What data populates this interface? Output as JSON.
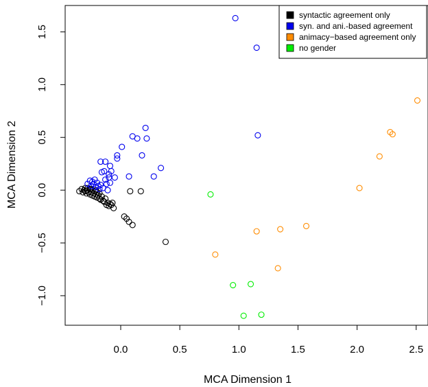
{
  "chart_data": {
    "type": "scatter",
    "xlabel": "MCA Dimension 1",
    "ylabel": "MCA Dimension 2",
    "xlim": [
      -0.47,
      2.6
    ],
    "ylim": [
      -1.28,
      1.75
    ],
    "x_ticks": [
      0.0,
      0.5,
      1.0,
      1.5,
      2.0,
      2.5
    ],
    "x_tick_labels": [
      "0.0",
      "0.5",
      "1.0",
      "1.5",
      "2.0",
      "2.5"
    ],
    "y_ticks": [
      -1.0,
      -0.5,
      0.0,
      0.5,
      1.0,
      1.5
    ],
    "y_tick_labels": [
      "−1.0",
      "−0.5",
      "0.0",
      "0.5",
      "1.0",
      "1.5"
    ],
    "grid": false,
    "legend_position": "top-right",
    "series": [
      {
        "name": "syntactic agreement only",
        "color": "#000000",
        "points": [
          [
            -0.35,
            -0.01
          ],
          [
            -0.33,
            0.01
          ],
          [
            -0.32,
            -0.02
          ],
          [
            -0.31,
            0.0
          ],
          [
            -0.3,
            -0.01
          ],
          [
            -0.3,
            0.02
          ],
          [
            -0.29,
            -0.03
          ],
          [
            -0.28,
            0.0
          ],
          [
            -0.27,
            -0.02
          ],
          [
            -0.26,
            0.01
          ],
          [
            -0.26,
            -0.04
          ],
          [
            -0.25,
            -0.02
          ],
          [
            -0.24,
            0.0
          ],
          [
            -0.24,
            -0.05
          ],
          [
            -0.23,
            -0.03
          ],
          [
            -0.22,
            -0.01
          ],
          [
            -0.22,
            -0.06
          ],
          [
            -0.21,
            -0.04
          ],
          [
            -0.2,
            -0.02
          ],
          [
            -0.2,
            -0.07
          ],
          [
            -0.19,
            -0.05
          ],
          [
            -0.18,
            -0.08
          ],
          [
            -0.18,
            -0.03
          ],
          [
            -0.17,
            -0.09
          ],
          [
            -0.16,
            -0.06
          ],
          [
            -0.15,
            -0.1
          ],
          [
            -0.14,
            -0.11
          ],
          [
            -0.13,
            -0.08
          ],
          [
            -0.12,
            -0.14
          ],
          [
            -0.11,
            -0.12
          ],
          [
            -0.1,
            -0.15
          ],
          [
            -0.09,
            -0.13
          ],
          [
            -0.08,
            -0.14
          ],
          [
            -0.07,
            -0.12
          ],
          [
            -0.06,
            -0.17
          ],
          [
            -0.28,
            0.02
          ],
          [
            -0.25,
            0.01
          ],
          [
            -0.21,
            0.0
          ],
          [
            0.08,
            -0.01
          ],
          [
            0.17,
            -0.01
          ],
          [
            0.03,
            -0.25
          ],
          [
            0.05,
            -0.27
          ],
          [
            0.07,
            -0.3
          ],
          [
            0.1,
            -0.33
          ],
          [
            0.38,
            -0.49
          ]
        ]
      },
      {
        "name": "syn. and ani.-based agreement",
        "color": "#0000ee",
        "points": [
          [
            -0.28,
            0.06
          ],
          [
            -0.26,
            0.09
          ],
          [
            -0.25,
            0.04
          ],
          [
            -0.24,
            0.08
          ],
          [
            -0.23,
            0.06
          ],
          [
            -0.22,
            0.1
          ],
          [
            -0.21,
            0.03
          ],
          [
            -0.2,
            0.07
          ],
          [
            -0.19,
            0.04
          ],
          [
            -0.18,
            0.01
          ],
          [
            -0.17,
            0.05
          ],
          [
            -0.16,
            0.17
          ],
          [
            -0.15,
            0.02
          ],
          [
            -0.14,
            0.18
          ],
          [
            -0.13,
            0.1
          ],
          [
            -0.12,
            0.06
          ],
          [
            -0.11,
            0.0
          ],
          [
            -0.1,
            0.15
          ],
          [
            -0.1,
            0.12
          ],
          [
            -0.09,
            0.07
          ],
          [
            -0.08,
            0.18
          ],
          [
            -0.17,
            0.27
          ],
          [
            -0.13,
            0.27
          ],
          [
            -0.09,
            0.23
          ],
          [
            -0.05,
            0.12
          ],
          [
            -0.03,
            0.3
          ],
          [
            -0.03,
            0.33
          ],
          [
            0.01,
            0.41
          ],
          [
            0.07,
            0.13
          ],
          [
            0.1,
            0.51
          ],
          [
            0.14,
            0.49
          ],
          [
            0.18,
            0.33
          ],
          [
            0.21,
            0.59
          ],
          [
            0.22,
            0.49
          ],
          [
            0.28,
            0.13
          ],
          [
            0.34,
            0.21
          ],
          [
            0.97,
            1.63
          ],
          [
            1.15,
            1.35
          ],
          [
            1.16,
            0.52
          ]
        ]
      },
      {
        "name": "animacy−based agreement only",
        "color": "#ff8c00",
        "points": [
          [
            0.8,
            -0.61
          ],
          [
            1.15,
            -0.39
          ],
          [
            1.33,
            -0.74
          ],
          [
            1.35,
            -0.37
          ],
          [
            1.57,
            -0.34
          ],
          [
            2.02,
            0.02
          ],
          [
            2.19,
            0.32
          ],
          [
            2.28,
            0.55
          ],
          [
            2.3,
            0.53
          ],
          [
            2.51,
            0.85
          ]
        ]
      },
      {
        "name": "no gender",
        "color": "#00ee00",
        "points": [
          [
            0.76,
            -0.04
          ],
          [
            0.95,
            -0.9
          ],
          [
            1.1,
            -0.89
          ],
          [
            1.04,
            -1.19
          ],
          [
            1.19,
            -1.18
          ]
        ]
      }
    ]
  }
}
